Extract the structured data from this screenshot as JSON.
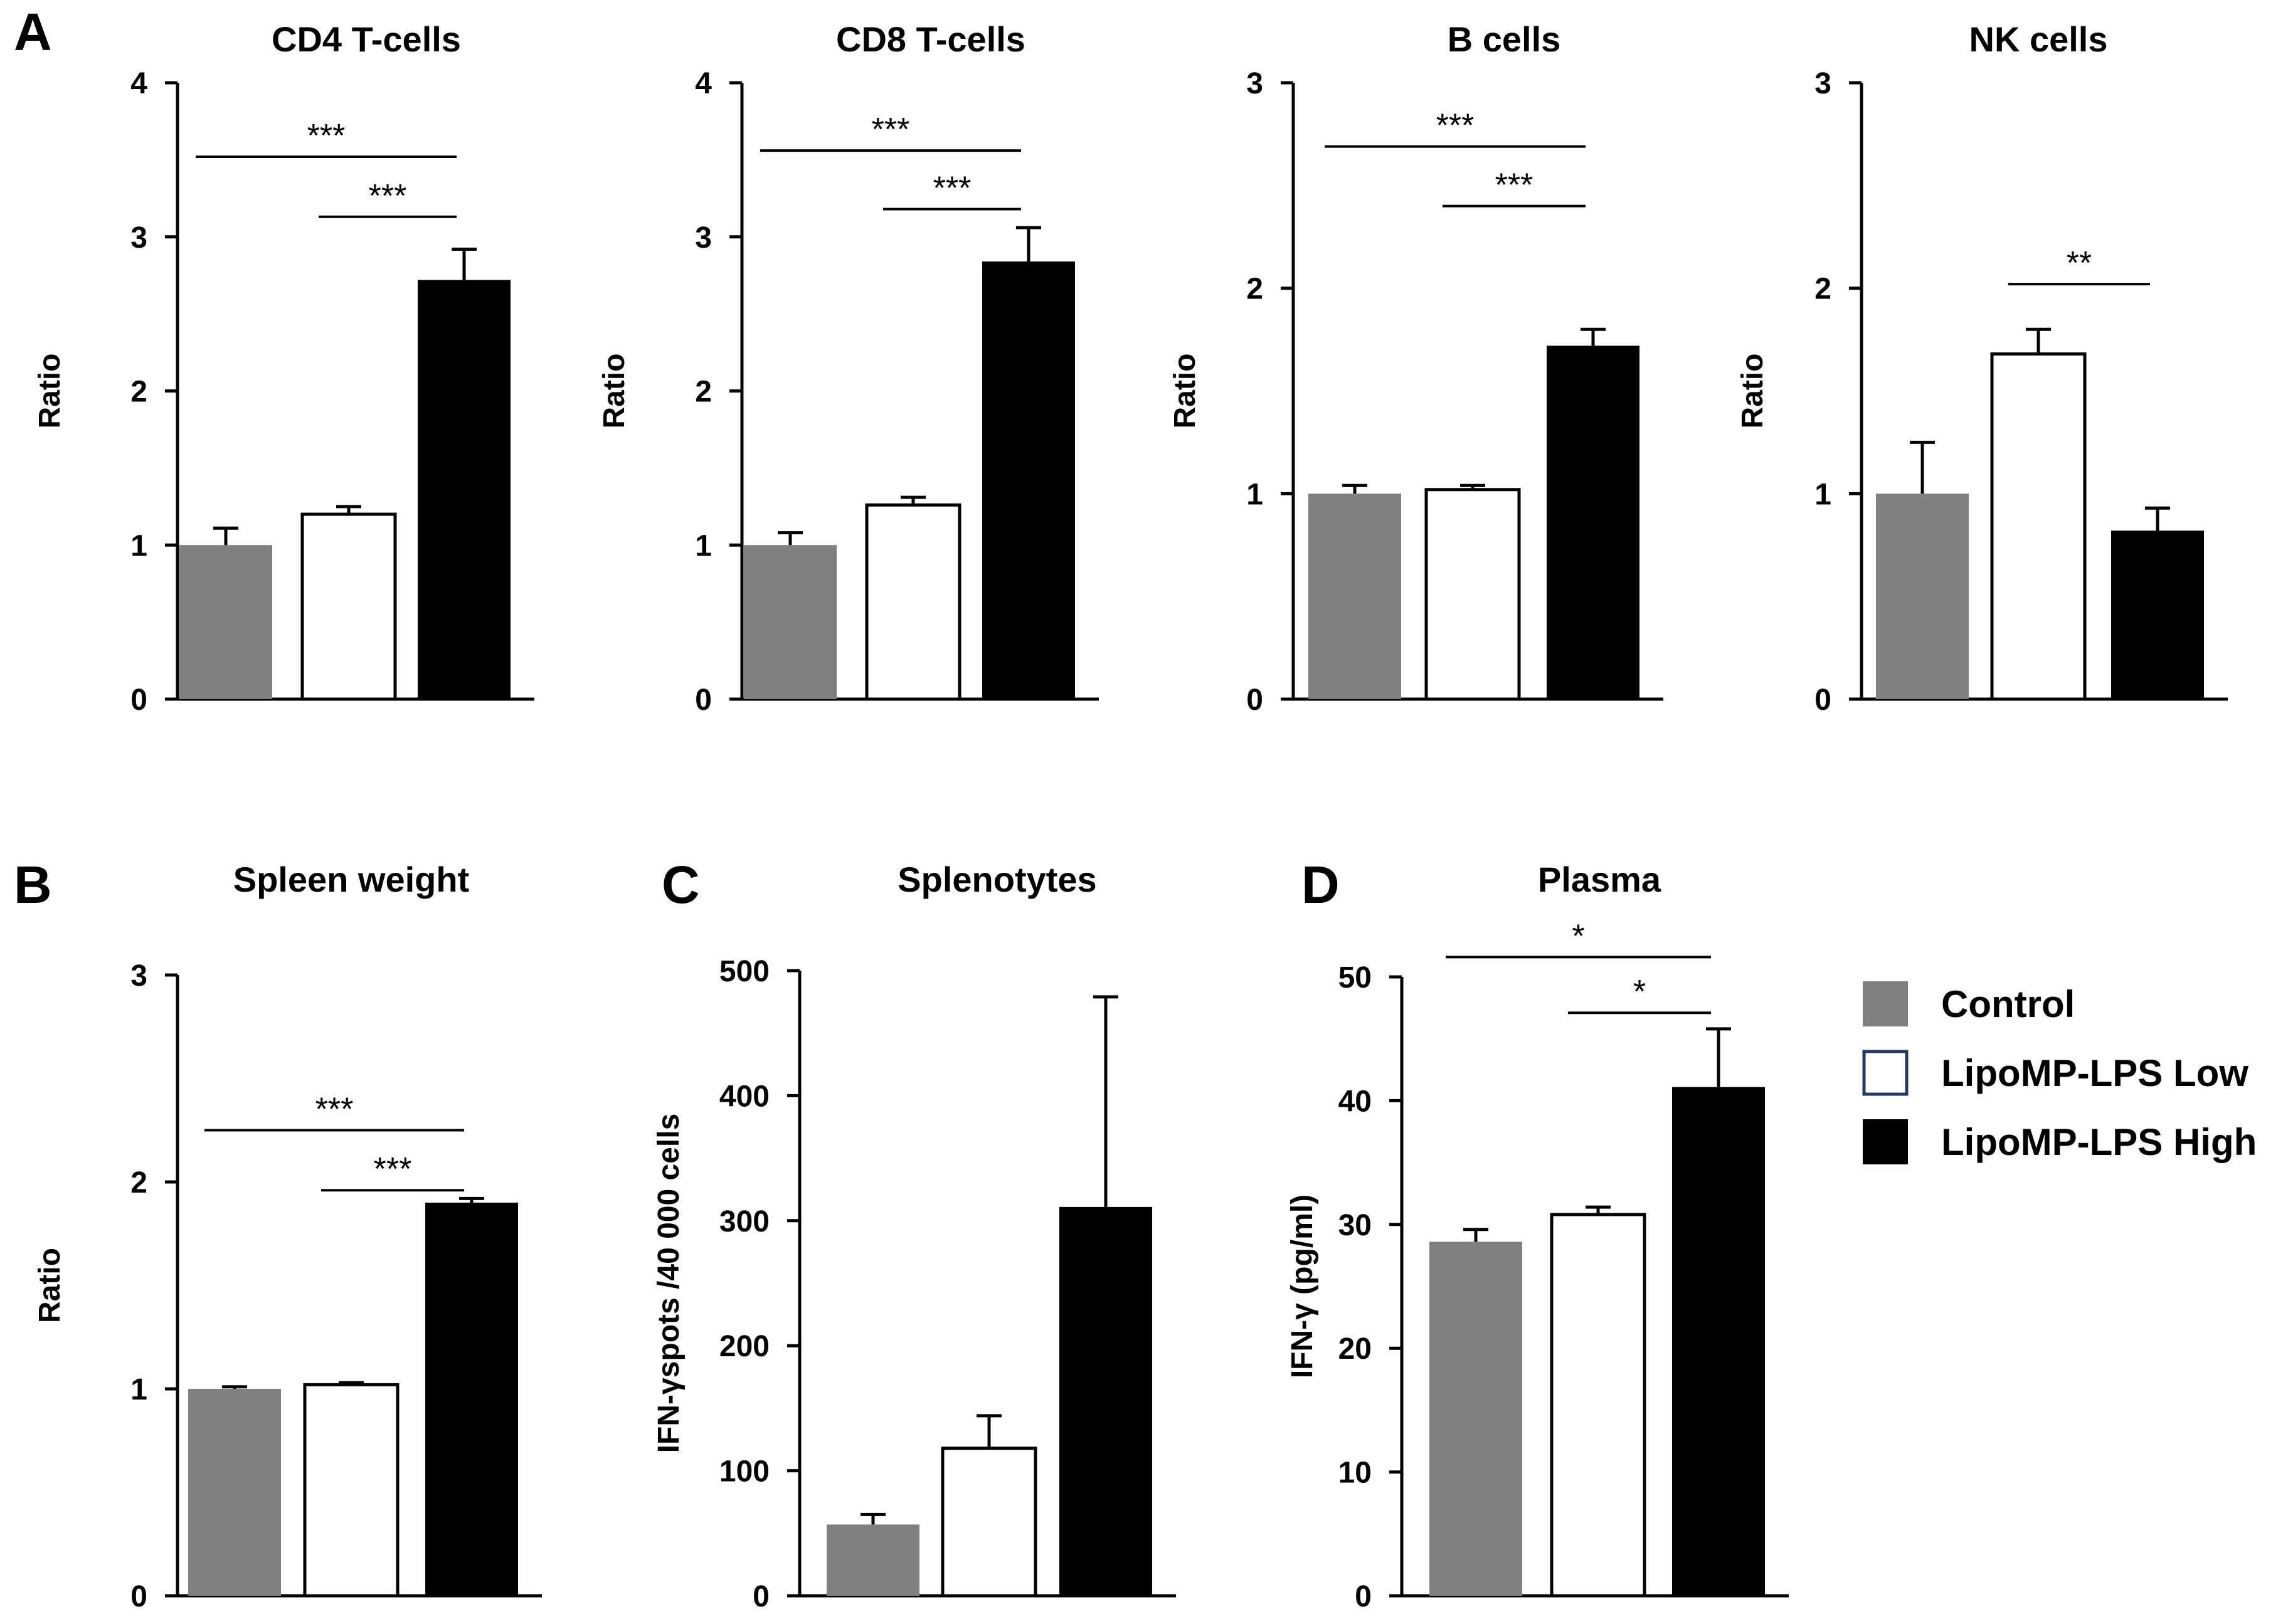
{
  "groups": [
    "Control",
    "LipoMP-LPS Low",
    "LipoMP-LPS High"
  ],
  "colors": {
    "Control": "#808080",
    "LipoMP-LPS Low": "#ffffff",
    "LipoMP-LPS High": "#000000",
    "legend_low_border": "#1f3864"
  },
  "legend": [
    "Control",
    "LipoMP-LPS Low",
    "LipoMP-LPS High"
  ],
  "chart_data": [
    {
      "panel": "A",
      "type": "bar",
      "title": "CD4 T-cells",
      "ylabel": "Ratio",
      "categories": [
        "Control",
        "LipoMP-LPS Low",
        "LipoMP-LPS High"
      ],
      "values": [
        1.0,
        1.2,
        2.72
      ],
      "errors": [
        0.11,
        0.05,
        0.2
      ],
      "ylim": [
        0,
        4
      ],
      "yticks": [
        "0",
        "1",
        "2",
        "3",
        "4"
      ],
      "significance": [
        {
          "from": 0,
          "to": 2,
          "label": "***",
          "y": 3.52
        },
        {
          "from": 1,
          "to": 2,
          "label": "***",
          "y": 3.13
        }
      ]
    },
    {
      "panel": "A",
      "type": "bar",
      "title": "CD8 T-cells",
      "ylabel": "Ratio",
      "categories": [
        "Control",
        "LipoMP-LPS Low",
        "LipoMP-LPS High"
      ],
      "values": [
        1.0,
        1.26,
        2.84
      ],
      "errors": [
        0.08,
        0.05,
        0.22
      ],
      "ylim": [
        0,
        4
      ],
      "yticks": [
        "0",
        "1",
        "2",
        "3",
        "4"
      ],
      "significance": [
        {
          "from": 0,
          "to": 2,
          "label": "***",
          "y": 3.56
        },
        {
          "from": 1,
          "to": 2,
          "label": "***",
          "y": 3.18
        }
      ]
    },
    {
      "panel": "A",
      "type": "bar",
      "title": "B cells",
      "ylabel": "Ratio",
      "categories": [
        "Control",
        "LipoMP-LPS Low",
        "LipoMP-LPS High"
      ],
      "values": [
        1.0,
        1.02,
        1.72
      ],
      "errors": [
        0.04,
        0.02,
        0.08
      ],
      "ylim": [
        0,
        3
      ],
      "yticks": [
        "0",
        "1",
        "2",
        "3"
      ],
      "significance": [
        {
          "from": 0,
          "to": 2,
          "label": "***",
          "y": 2.69
        },
        {
          "from": 1,
          "to": 2,
          "label": "***",
          "y": 2.4
        }
      ]
    },
    {
      "panel": "A",
      "type": "bar",
      "title": "NK cells",
      "ylabel": "Ratio",
      "categories": [
        "Control",
        "LipoMP-LPS Low",
        "LipoMP-LPS High"
      ],
      "values": [
        1.0,
        1.68,
        0.82
      ],
      "errors": [
        0.25,
        0.12,
        0.11
      ],
      "ylim": [
        0,
        3
      ],
      "yticks": [
        "0",
        "1",
        "2",
        "3"
      ],
      "significance": [
        {
          "from": 1,
          "to": 2,
          "label": "**",
          "y": 2.02
        }
      ]
    },
    {
      "panel": "B",
      "type": "bar",
      "title": "Spleen weight",
      "ylabel": "Ratio",
      "categories": [
        "Control",
        "LipoMP-LPS Low",
        "LipoMP-LPS High"
      ],
      "values": [
        1.0,
        1.02,
        1.9
      ],
      "errors": [
        0.01,
        0.01,
        0.02
      ],
      "ylim": [
        0,
        3
      ],
      "yticks": [
        "0",
        "1",
        "2",
        "3"
      ],
      "significance": [
        {
          "from": 0,
          "to": 2,
          "label": "***",
          "y": 2.25
        },
        {
          "from": 1,
          "to": 2,
          "label": "***",
          "y": 1.96
        }
      ]
    },
    {
      "panel": "C",
      "type": "bar",
      "title": "Splenotytes",
      "ylabel": "IFN-γspots /40 000 cells",
      "categories": [
        "Control",
        "LipoMP-LPS Low",
        "LipoMP-LPS High"
      ],
      "values": [
        57,
        118,
        311
      ],
      "errors": [
        8,
        26,
        168
      ],
      "ylim": [
        0,
        500
      ],
      "yticks": [
        "0",
        "100",
        "200",
        "300",
        "400",
        "500"
      ],
      "significance": []
    },
    {
      "panel": "D",
      "type": "bar",
      "title": "Plasma",
      "ylabel": "IFN-γ (pg/ml)",
      "categories": [
        "Control",
        "LipoMP-LPS Low",
        "LipoMP-LPS High"
      ],
      "values": [
        28.6,
        30.8,
        41.1
      ],
      "errors": [
        1.0,
        0.6,
        4.7
      ],
      "ylim": [
        0,
        50
      ],
      "yticks": [
        "0",
        "10",
        "20",
        "30",
        "40",
        "50"
      ],
      "significance": [
        {
          "from": 0,
          "to": 2,
          "label": "*",
          "y": 51.6
        },
        {
          "from": 1,
          "to": 2,
          "label": "*",
          "y": 47.1
        }
      ]
    }
  ],
  "panel_labels": [
    "A",
    "B",
    "C",
    "D"
  ]
}
